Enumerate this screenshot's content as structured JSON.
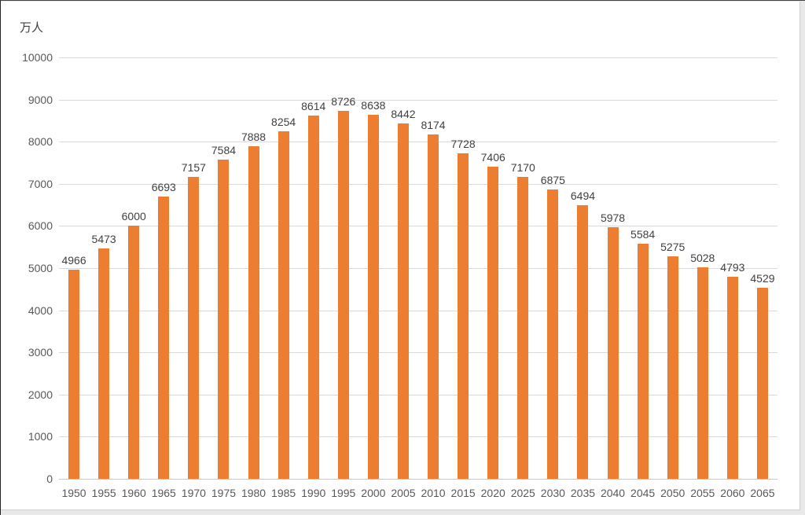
{
  "chart": {
    "unit_label": "万人",
    "colors": {
      "bar": "#ED7D31",
      "gridline": "#D9D9D9",
      "axis_line": "#C9C9C9",
      "tick_label": "#595959",
      "value_label": "#404040",
      "background": "#FFFFFF"
    }
  },
  "chart_data": {
    "type": "bar",
    "title": "",
    "ylabel": "万人",
    "xlabel": "",
    "categories": [
      "1950",
      "1955",
      "1960",
      "1965",
      "1970",
      "1975",
      "1980",
      "1985",
      "1990",
      "1995",
      "2000",
      "2005",
      "2010",
      "2015",
      "2020",
      "2025",
      "2030",
      "2035",
      "2040",
      "2045",
      "2050",
      "2055",
      "2060",
      "2065"
    ],
    "values": [
      4966,
      5473,
      6000,
      6693,
      7157,
      7584,
      7888,
      8254,
      8614,
      8726,
      8638,
      8442,
      8174,
      7728,
      7406,
      7170,
      6875,
      6494,
      5978,
      5584,
      5275,
      5028,
      4793,
      4529
    ],
    "ylim": [
      0,
      10000
    ],
    "ytick_step": 1000,
    "grid": true,
    "legend": "none",
    "value_labels": true
  }
}
